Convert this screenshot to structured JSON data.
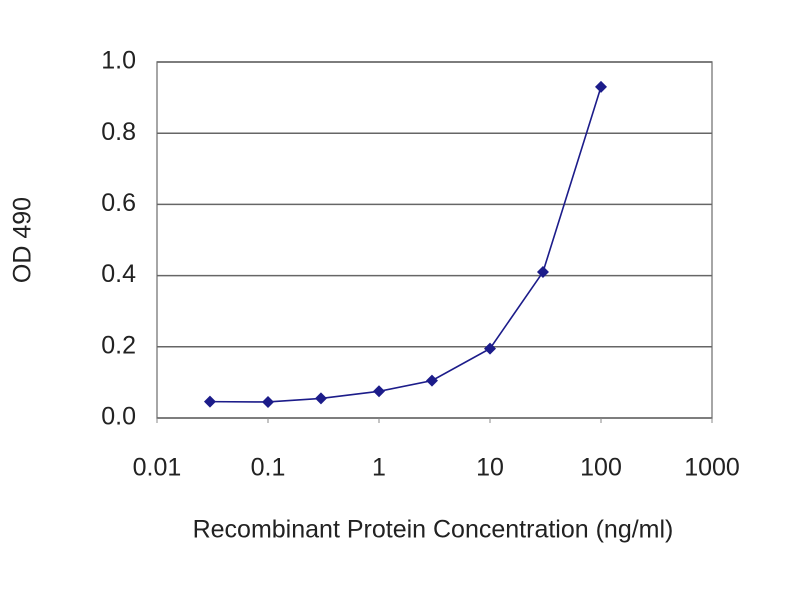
{
  "chart_data": {
    "type": "line",
    "x_label": "Recombinant Protein Concentration (ng/ml)",
    "y_label": "OD 490",
    "x": [
      0.03,
      0.1,
      0.3,
      1,
      3,
      10,
      30,
      100
    ],
    "values": [
      0.046,
      0.045,
      0.055,
      0.075,
      0.105,
      0.195,
      0.41,
      0.93
    ],
    "color": "#1c1c8a",
    "x_log": true,
    "xlim": [
      0.01,
      1000
    ],
    "xticks": [
      0.01,
      0.1,
      1,
      10,
      100,
      1000
    ],
    "ylim": [
      0,
      1
    ],
    "yticks": [
      {
        "value": 0,
        "label": "0.0"
      },
      0.2,
      0.4,
      0.6,
      0.8,
      {
        "value": 1,
        "label": "1.0"
      }
    ],
    "grid": true
  }
}
